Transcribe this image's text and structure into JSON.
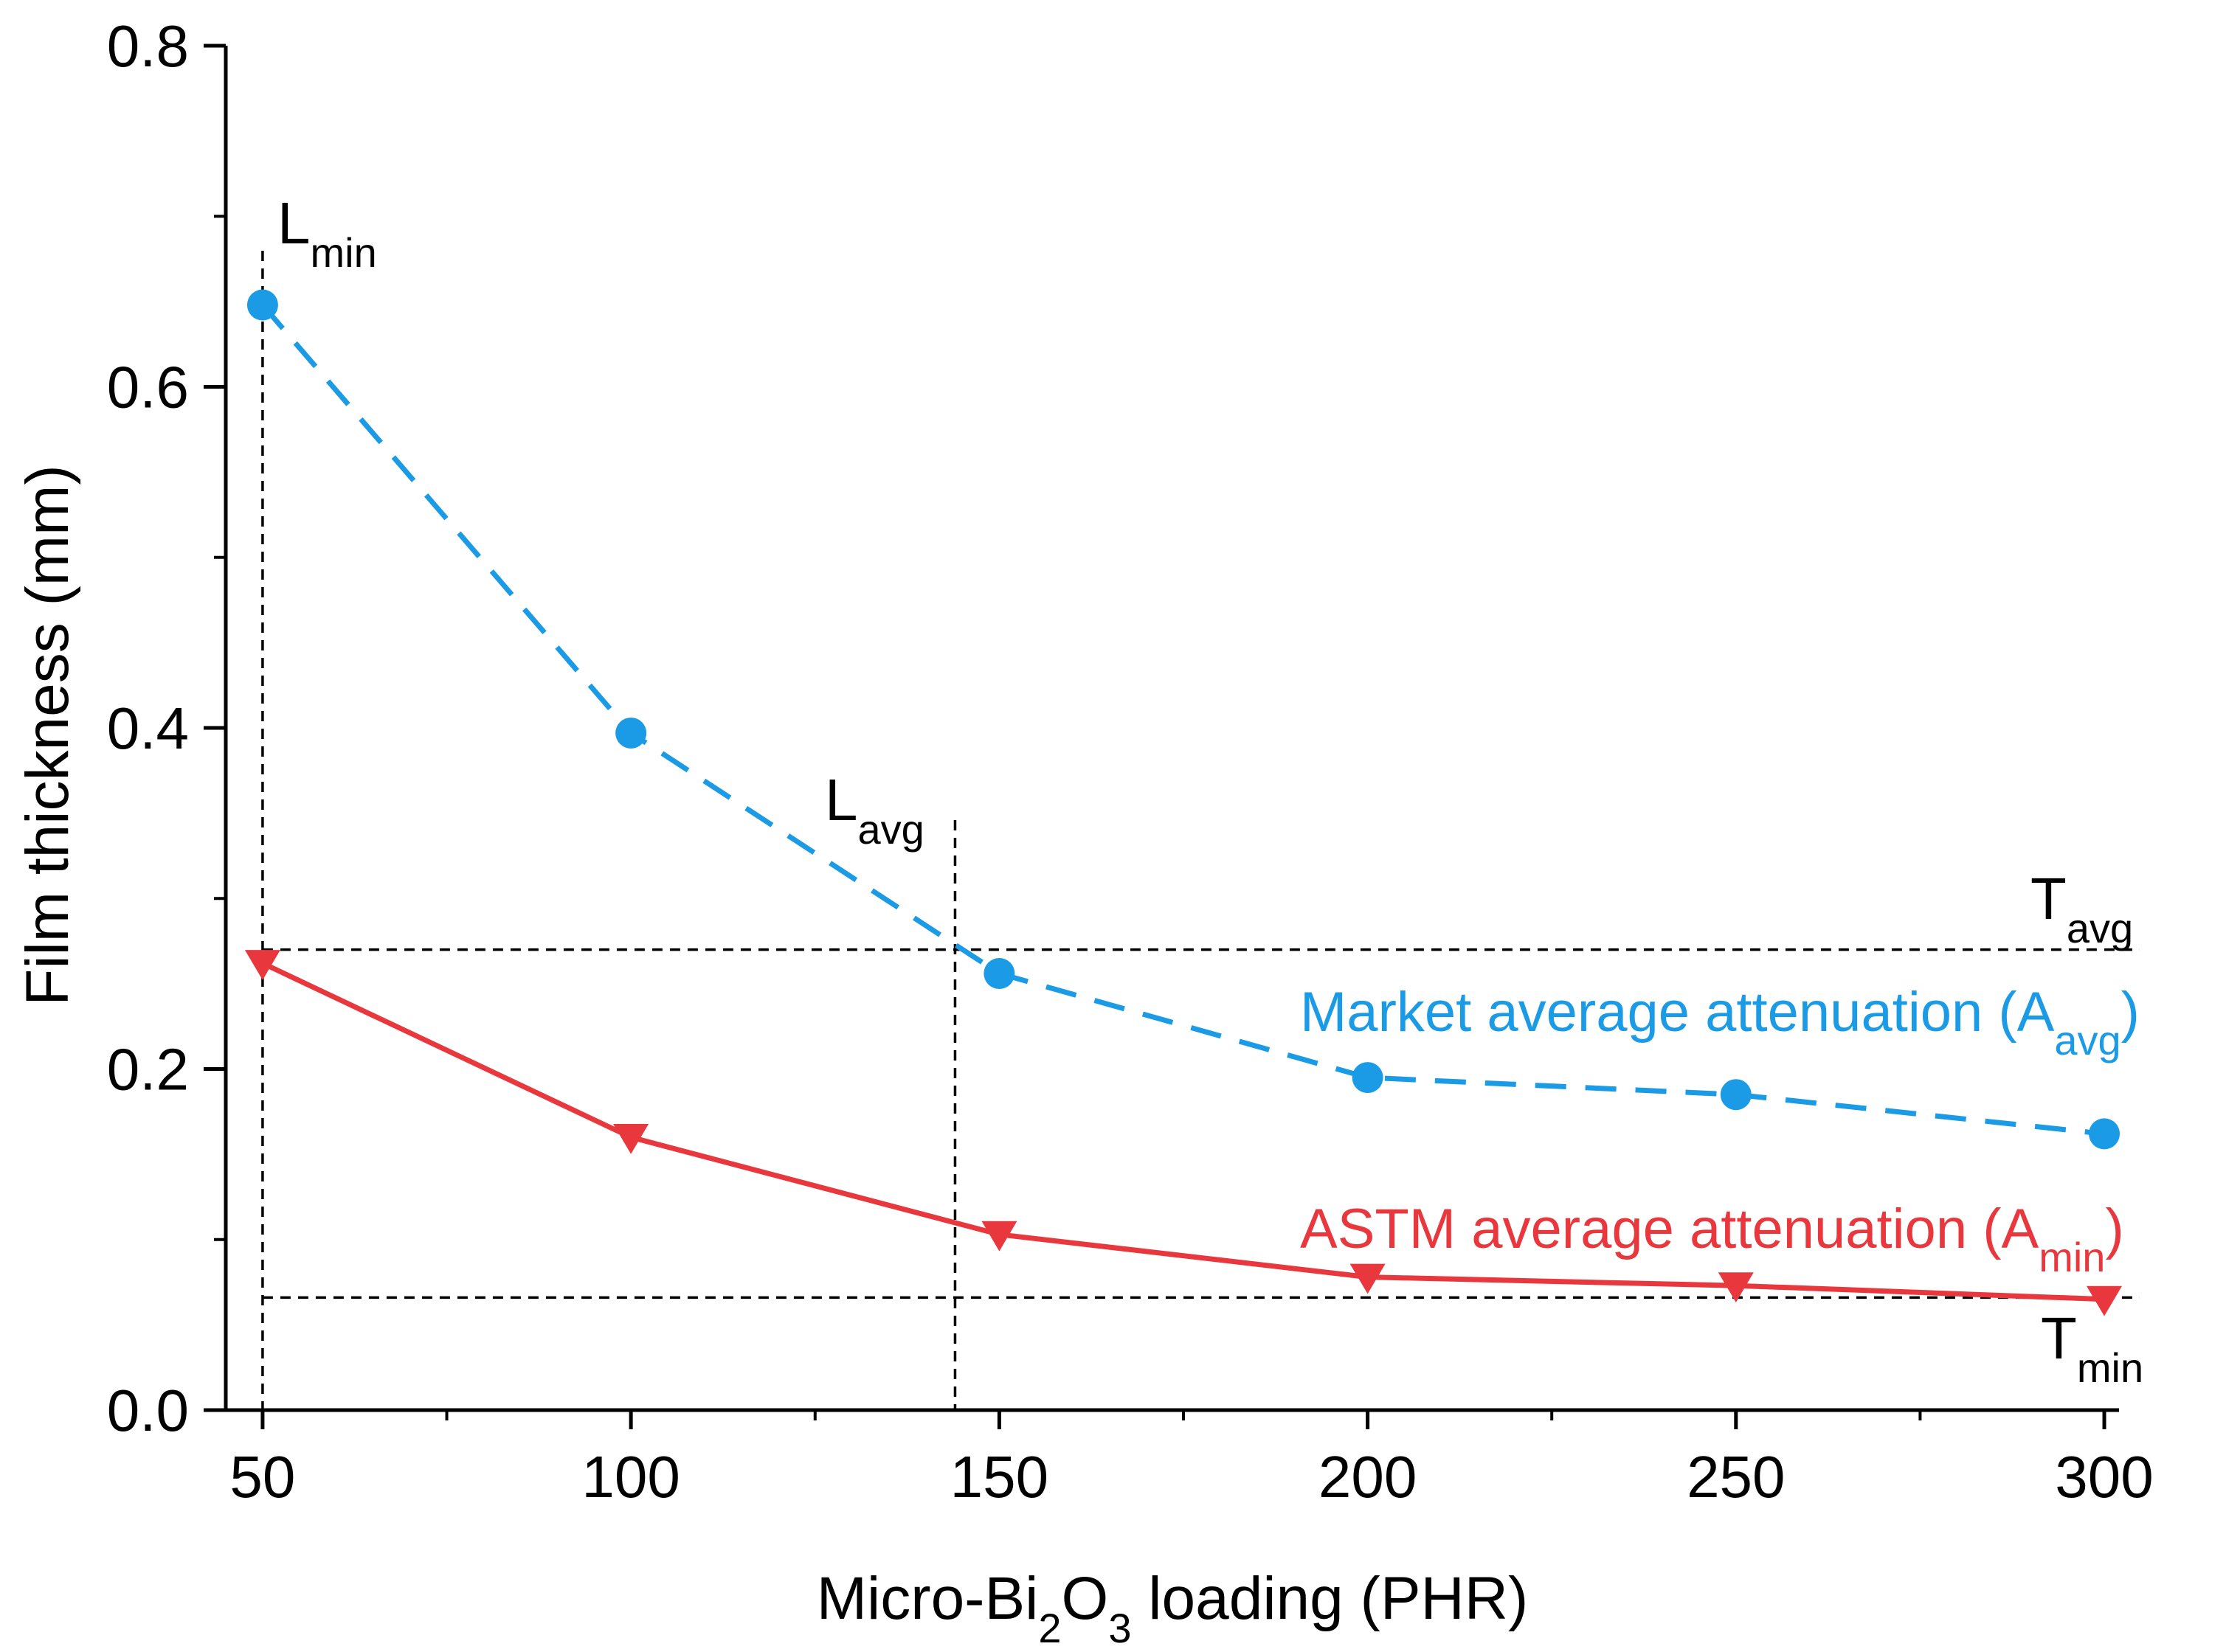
{
  "chart_data": {
    "type": "line",
    "xlabel": {
      "main": "Micro-Bi",
      "sub1": "2",
      "mid": "O",
      "sub2": "3",
      "tail": " loading (PHR)"
    },
    "ylabel": "Film thickness (mm)",
    "xlim": [
      45,
      302
    ],
    "ylim": [
      0,
      0.8
    ],
    "x_ticks": [
      50,
      100,
      150,
      200,
      250,
      300
    ],
    "x_tick_labels": [
      "50",
      "100",
      "150",
      "200",
      "250",
      "300"
    ],
    "y_ticks": [
      0.0,
      0.2,
      0.4,
      0.6,
      0.8
    ],
    "y_tick_labels": [
      "0.0",
      "0.2",
      "0.4",
      "0.6",
      "0.8"
    ],
    "x_minor_step": 25,
    "y_minor_step": 0.1,
    "grid": false,
    "series": [
      {
        "name": "Market average attenuation (A",
        "name_sub": "avg",
        "name_tail": ")",
        "color": "#1b9be6",
        "line_style": "dashed",
        "marker": "circle",
        "x": [
          50,
          100,
          150,
          200,
          250,
          300
        ],
        "y": [
          0.648,
          0.397,
          0.256,
          0.195,
          0.185,
          0.162
        ]
      },
      {
        "name": "ASTM average attenuation (A",
        "name_sub": "min",
        "name_tail": ")",
        "color": "#e8383d",
        "line_style": "solid",
        "marker": "triangle-down",
        "x": [
          50,
          100,
          150,
          200,
          250,
          300
        ],
        "y": [
          0.262,
          0.16,
          0.103,
          0.078,
          0.073,
          0.065
        ]
      }
    ],
    "reference_lines": {
      "T_avg": {
        "y": 0.27,
        "label": "T",
        "sub": "avg"
      },
      "T_min": {
        "y": 0.066,
        "label": "T",
        "sub": "min"
      },
      "L_min": {
        "x": 50,
        "label": "L",
        "sub": "min"
      },
      "L_avg": {
        "x": 144,
        "label": "L",
        "sub": "avg"
      }
    }
  }
}
